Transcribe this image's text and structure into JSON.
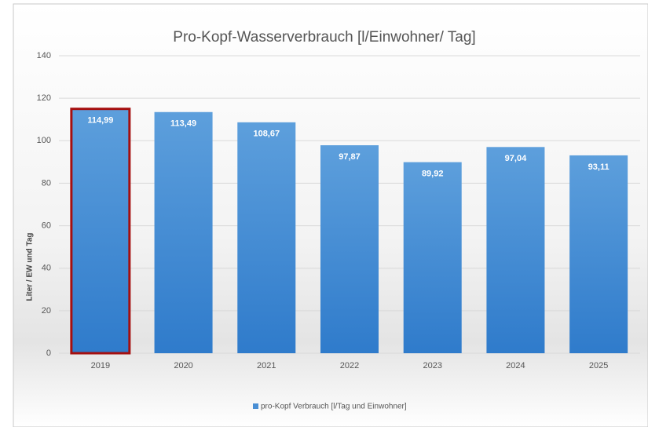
{
  "chart_data": {
    "type": "bar",
    "title": "Pro-Kopf-Wasserverbrauch [l/Einwohner/ Tag]",
    "y_label": "Liter / EW und Tag",
    "categories": [
      "2019",
      "2020",
      "2021",
      "2022",
      "2023",
      "2024",
      "2025"
    ],
    "series": [
      {
        "name": "pro-Kopf Verbrauch [l/Tag und Einwohner]",
        "color": "#4a8fd4",
        "values": [
          114.99,
          113.49,
          108.67,
          97.87,
          89.92,
          97.04,
          93.11
        ],
        "value_labels": [
          "114,99",
          "113,49",
          "108,67",
          "97,87",
          "89,92",
          "97,04",
          "93,11"
        ]
      }
    ],
    "highlight": {
      "index": 0,
      "color": "#a50f0f"
    },
    "ylim": [
      0,
      140
    ],
    "yticks": [
      0,
      20,
      40,
      60,
      80,
      100,
      120,
      140
    ],
    "grid": true,
    "legend": "bottom"
  }
}
